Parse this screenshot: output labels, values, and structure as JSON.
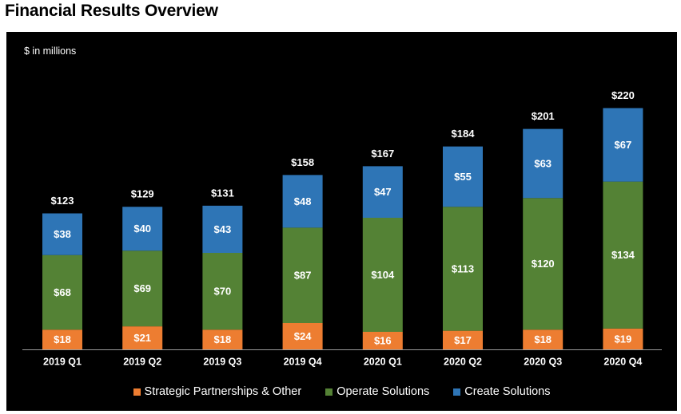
{
  "page": {
    "title": "Financial Results Overview"
  },
  "chart_data": {
    "type": "bar",
    "stacked": true,
    "title": "Financial Results Overview",
    "unit_note": "$ in millions",
    "categories": [
      "2019 Q1",
      "2019 Q2",
      "2019 Q3",
      "2019 Q4",
      "2020 Q1",
      "2020 Q2",
      "2020 Q3",
      "2020 Q4"
    ],
    "series": [
      {
        "name": "Strategic Partnerships & Other",
        "color": "#ED7D31",
        "values": [
          18,
          21,
          18,
          24,
          16,
          17,
          18,
          19
        ]
      },
      {
        "name": "Operate Solutions",
        "color": "#548235",
        "values": [
          68,
          69,
          70,
          87,
          104,
          113,
          120,
          134
        ]
      },
      {
        "name": "Create Solutions",
        "color": "#2E75B6",
        "values": [
          38,
          40,
          43,
          48,
          47,
          55,
          63,
          67
        ]
      }
    ],
    "totals": [
      123,
      129,
      131,
      158,
      167,
      184,
      201,
      220
    ],
    "value_prefix": "$",
    "ylim": [
      0,
      240
    ],
    "grid": false,
    "legend_position": "bottom"
  }
}
